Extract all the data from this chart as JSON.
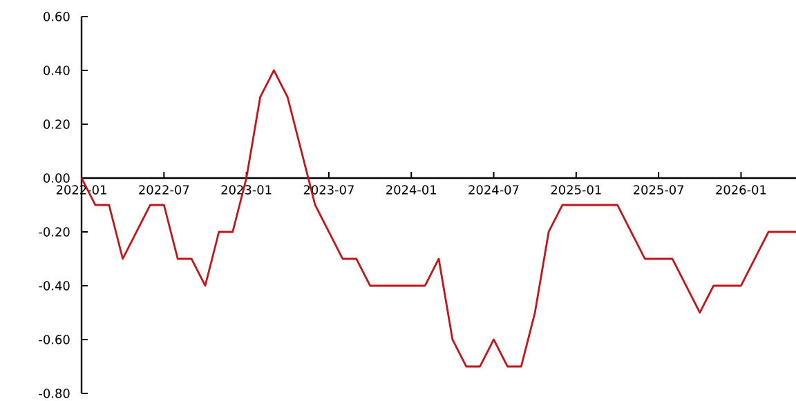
{
  "chart_data": {
    "type": "line",
    "color": "#c0161b",
    "line_style": "solid",
    "marker": "none",
    "grid": false,
    "x": [
      "2022-01",
      "2022-02",
      "2022-03",
      "2022-04",
      "2022-05",
      "2022-06",
      "2022-07",
      "2022-08",
      "2022-09",
      "2022-10",
      "2022-11",
      "2022-12",
      "2023-01",
      "2023-02",
      "2023-03",
      "2023-04",
      "2023-05",
      "2023-06",
      "2023-07",
      "2023-08",
      "2023-09",
      "2023-10",
      "2023-11",
      "2023-12",
      "2024-01",
      "2024-02",
      "2024-03",
      "2024-04",
      "2024-05",
      "2024-06",
      "2024-07",
      "2024-08",
      "2024-09",
      "2024-10",
      "2024-11",
      "2024-12",
      "2025-01",
      "2025-02",
      "2025-03",
      "2025-04",
      "2025-05",
      "2025-06",
      "2025-07",
      "2025-08",
      "2025-09",
      "2025-10",
      "2025-11",
      "2025-12",
      "2026-01",
      "2026-02",
      "2026-03",
      "2026-04",
      "2026-05"
    ],
    "values": [
      0.0,
      -0.1,
      -0.1,
      -0.3,
      -0.2,
      -0.1,
      -0.1,
      -0.3,
      -0.3,
      -0.4,
      -0.2,
      -0.2,
      0.0,
      0.3,
      0.4,
      0.3,
      0.1,
      -0.1,
      -0.2,
      -0.3,
      -0.3,
      -0.4,
      -0.4,
      -0.4,
      -0.4,
      -0.4,
      -0.3,
      -0.6,
      -0.7,
      -0.7,
      -0.6,
      -0.7,
      -0.7,
      -0.5,
      -0.2,
      -0.1,
      -0.1,
      -0.1,
      -0.1,
      -0.1,
      -0.2,
      -0.3,
      -0.3,
      -0.3,
      -0.4,
      -0.5,
      -0.4,
      -0.4,
      -0.4,
      -0.3,
      -0.2,
      -0.2,
      -0.2
    ],
    "xlim": [
      "2022-01",
      "2026-05"
    ],
    "xticks": [
      "2022-01",
      "2022-07",
      "2023-01",
      "2023-07",
      "2024-01",
      "2024-07",
      "2025-01",
      "2025-07",
      "2026-01"
    ],
    "ylim": [
      -0.8,
      0.6
    ],
    "yticks": [
      {
        "value": 0.6,
        "label": "0.60"
      },
      {
        "value": 0.4,
        "label": "0.40"
      },
      {
        "value": 0.2,
        "label": "0.20"
      },
      {
        "value": 0.0,
        "label": "0.00"
      },
      {
        "value": -0.2,
        "label": "-0.20"
      },
      {
        "value": -0.4,
        "label": "-0.40"
      },
      {
        "value": -0.6,
        "label": "-0.60"
      },
      {
        "value": -0.8,
        "label": "-0.80"
      }
    ]
  }
}
